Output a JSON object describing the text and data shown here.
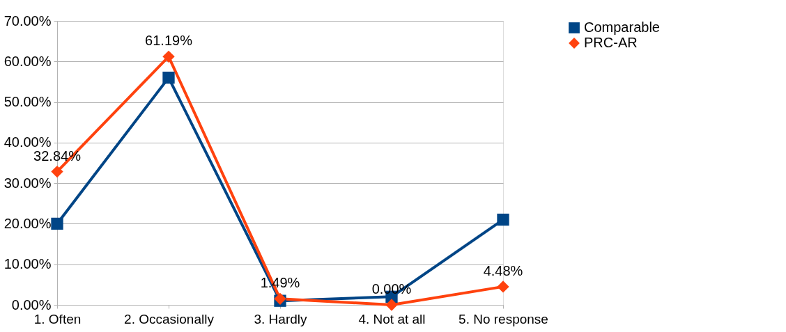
{
  "chart_data": {
    "type": "line",
    "categories": [
      "1. Often",
      "2. Occasionally",
      "3. Hardly",
      "4. Not at all",
      "5. No response"
    ],
    "series": [
      {
        "name": "Comparable",
        "color": "#004586",
        "marker": "square",
        "values": [
          20,
          56,
          1,
          2,
          21
        ]
      },
      {
        "name": "PRC-AR",
        "color": "#ff420e",
        "marker": "diamond",
        "values": [
          32.84,
          61.19,
          1.49,
          0,
          4.48
        ],
        "value_labels": [
          "32.84%",
          "61.19%",
          "1.49%",
          "0.00%",
          "4.48%"
        ]
      }
    ],
    "ylim": [
      0,
      70
    ],
    "yticks": [
      {
        "value": 0,
        "label": "0.00%"
      },
      {
        "value": 10,
        "label": "10.00%"
      },
      {
        "value": 20,
        "label": "20.00%"
      },
      {
        "value": 30,
        "label": "30.00%"
      },
      {
        "value": 40,
        "label": "40.00%"
      },
      {
        "value": 50,
        "label": "50.00%"
      },
      {
        "value": 60,
        "label": "60.00%"
      },
      {
        "value": 70,
        "label": "70.00%"
      }
    ],
    "grid": "y",
    "legend": "right",
    "line_style": "solid"
  }
}
